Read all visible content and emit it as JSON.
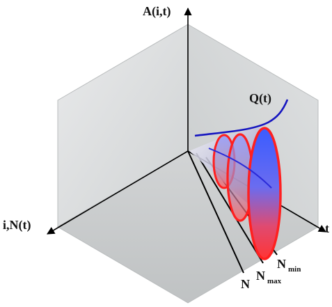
{
  "labels": {
    "a_axis": "A(i,t)",
    "i_axis": "i,N(t)",
    "t_axis": "t",
    "q_curve": "Q(t)",
    "n_line": "N",
    "nmax_base": "N",
    "nmax_sub": "max",
    "nmin_base": "N",
    "nmin_sub": "min"
  },
  "colors": {
    "cube_face": "#d7d9da",
    "cube_edge": "#a9acad",
    "q_curve": "#1515c0",
    "ellipse_outline": "#ff2020",
    "ellipse_fill_top": "#3c5cff",
    "ellipse_fill_bottom": "#ff3030",
    "axis": "#000000"
  }
}
